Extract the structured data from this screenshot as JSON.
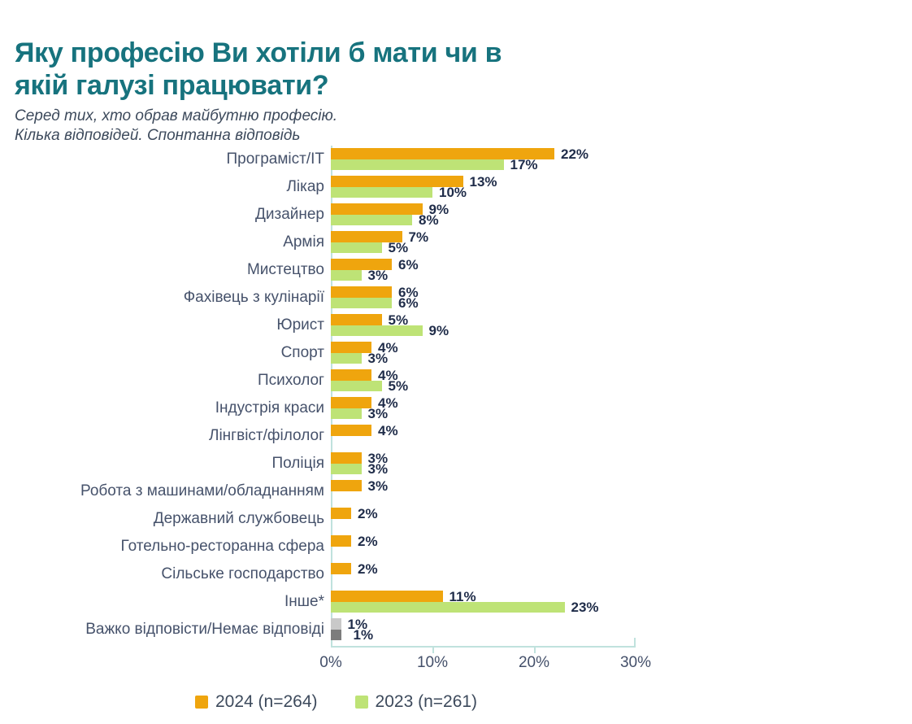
{
  "title_lines": [
    "Яку  професію Ви хотіли б мати чи в",
    "якій галузі працювати?"
  ],
  "subtitle_lines": [
    "Серед тих, хто обрав майбутню професію.",
    "Кілька відповідей. Спонтанна відповідь"
  ],
  "colors": {
    "orange": "#EFA50E",
    "green": "#BEE376",
    "gray_light": "#C9C9C9",
    "gray_dark": "#7D7D7D",
    "axis": "#C0E2DD",
    "title": "#17737E",
    "text": "#46526B",
    "value_label": "#1F2C49"
  },
  "x_axis": {
    "tick_labels": [
      "0%",
      "10%",
      "20%",
      "30%"
    ],
    "max_pct": 30
  },
  "legend": [
    {
      "label": "2024 (n=264)",
      "color_key": "orange"
    },
    {
      "label": "2023 (n=261)",
      "color_key": "green"
    }
  ],
  "chart_data": {
    "type": "bar",
    "orientation": "horizontal",
    "unit": "%",
    "xlim": [
      0,
      30
    ],
    "x_ticks": [
      "0%",
      "10%",
      "20%",
      "30%"
    ],
    "grid": false,
    "legend_position": "bottom",
    "title": "Яку професію Ви хотіли б мати чи в якій галузі працювати?",
    "subtitle": "Серед тих, хто обрав майбутню професію. Кілька відповідей. Спонтанна відповідь",
    "categories": [
      "Програміст/ІТ",
      "Лікар",
      "Дизайнер",
      "Армія",
      "Мистецтво",
      "Фахівець з кулінарії",
      "Юрист",
      "Спорт",
      "Психолог",
      "Індустрія краси",
      "Лінгвіст/філолог",
      "Поліція",
      "Робота з машинами/обладнанням",
      "Державний службовець",
      "Готельно-ресторанна сфера",
      "Сільське господарство",
      "Інше*",
      "Важко відповісти/Немає відповіді"
    ],
    "series": [
      {
        "name": "2024 (n=264)",
        "color": "#EFA50E",
        "values": [
          22,
          13,
          9,
          7,
          6,
          6,
          5,
          4,
          4,
          4,
          4,
          3,
          3,
          2,
          2,
          2,
          11,
          1
        ]
      },
      {
        "name": "2023 (n=261)",
        "color": "#BEE376",
        "values": [
          17,
          10,
          8,
          5,
          3,
          6,
          9,
          3,
          5,
          3,
          null,
          3,
          null,
          null,
          null,
          null,
          23,
          1
        ]
      }
    ],
    "note": "Last category (no answer) is rendered with gray bars instead of series colors",
    "rows": [
      {
        "category": "Програміст/ІТ",
        "bars": [
          {
            "series": "2024 (n=264)",
            "value": 22,
            "label": "22%",
            "color_key": "orange"
          },
          {
            "series": "2023 (n=261)",
            "value": 17,
            "label": "17%",
            "color_key": "green"
          }
        ]
      },
      {
        "category": "Лікар",
        "bars": [
          {
            "series": "2024 (n=264)",
            "value": 13,
            "label": "13%",
            "color_key": "orange"
          },
          {
            "series": "2023 (n=261)",
            "value": 10,
            "label": "10%",
            "color_key": "green"
          }
        ]
      },
      {
        "category": "Дизайнер",
        "bars": [
          {
            "series": "2024 (n=264)",
            "value": 9,
            "label": "9%",
            "color_key": "orange"
          },
          {
            "series": "2023 (n=261)",
            "value": 8,
            "label": "8%",
            "color_key": "green"
          }
        ]
      },
      {
        "category": "Армія",
        "bars": [
          {
            "series": "2024 (n=264)",
            "value": 7,
            "label": "7%",
            "color_key": "orange"
          },
          {
            "series": "2023 (n=261)",
            "value": 5,
            "label": "5%",
            "color_key": "green"
          }
        ]
      },
      {
        "category": "Мистецтво",
        "bars": [
          {
            "series": "2024 (n=264)",
            "value": 6,
            "label": "6%",
            "color_key": "orange"
          },
          {
            "series": "2023 (n=261)",
            "value": 3,
            "label": "3%",
            "color_key": "green"
          }
        ]
      },
      {
        "category": "Фахівець з кулінарії",
        "bars": [
          {
            "series": "2024 (n=264)",
            "value": 6,
            "label": "6%",
            "color_key": "orange"
          },
          {
            "series": "2023 (n=261)",
            "value": 6,
            "label": "6%",
            "color_key": "green"
          }
        ]
      },
      {
        "category": "Юрист",
        "bars": [
          {
            "series": "2024 (n=264)",
            "value": 5,
            "label": "5%",
            "color_key": "orange"
          },
          {
            "series": "2023 (n=261)",
            "value": 9,
            "label": "9%",
            "color_key": "green"
          }
        ]
      },
      {
        "category": "Спорт",
        "bars": [
          {
            "series": "2024 (n=264)",
            "value": 4,
            "label": "4%",
            "color_key": "orange"
          },
          {
            "series": "2023 (n=261)",
            "value": 3,
            "label": "3%",
            "color_key": "green"
          }
        ]
      },
      {
        "category": "Психолог",
        "bars": [
          {
            "series": "2024 (n=264)",
            "value": 4,
            "label": "4%",
            "color_key": "orange"
          },
          {
            "series": "2023 (n=261)",
            "value": 5,
            "label": "5%",
            "color_key": "green"
          }
        ]
      },
      {
        "category": "Індустрія краси",
        "bars": [
          {
            "series": "2024 (n=264)",
            "value": 4,
            "label": "4%",
            "color_key": "orange"
          },
          {
            "series": "2023 (n=261)",
            "value": 3,
            "label": "3%",
            "color_key": "green"
          }
        ]
      },
      {
        "category": "Лінгвіст/філолог",
        "bars": [
          {
            "series": "2024 (n=264)",
            "value": 4,
            "label": "4%",
            "color_key": "orange"
          }
        ]
      },
      {
        "category": "Поліція",
        "bars": [
          {
            "series": "2024 (n=264)",
            "value": 3,
            "label": "3%",
            "color_key": "orange"
          },
          {
            "series": "2023 (n=261)",
            "value": 3,
            "label": "3%",
            "color_key": "green"
          }
        ]
      },
      {
        "category": "Робота з машинами/обладнанням",
        "bars": [
          {
            "series": "2024 (n=264)",
            "value": 3,
            "label": "3%",
            "color_key": "orange"
          }
        ]
      },
      {
        "category": "Державний службовець",
        "bars": [
          {
            "series": "2024 (n=264)",
            "value": 2,
            "label": "2%",
            "color_key": "orange"
          }
        ]
      },
      {
        "category": "Готельно-ресторанна сфера",
        "bars": [
          {
            "series": "2024 (n=264)",
            "value": 2,
            "label": "2%",
            "color_key": "orange"
          }
        ]
      },
      {
        "category": "Сільське господарство",
        "bars": [
          {
            "series": "2024 (n=264)",
            "value": 2,
            "label": "2%",
            "color_key": "orange"
          }
        ]
      },
      {
        "category": "Інше*",
        "bars": [
          {
            "series": "2024 (n=264)",
            "value": 11,
            "label": "11%",
            "color_key": "orange"
          },
          {
            "series": "2023 (n=261)",
            "value": 23,
            "label": "23%",
            "color_key": "green"
          }
        ]
      },
      {
        "category": "Важко відповісти/Немає відповіді",
        "bars": [
          {
            "series": "2024 (n=264)",
            "value": 1,
            "label": "1%",
            "color_key": "gray_light"
          },
          {
            "series": "2023 (n=261)",
            "value": 1,
            "label": "1%",
            "color_key": "gray_dark"
          }
        ]
      }
    ]
  }
}
